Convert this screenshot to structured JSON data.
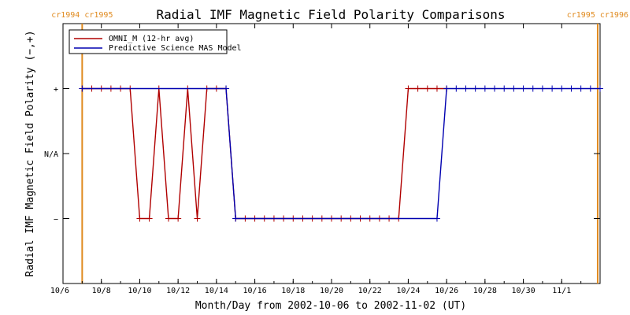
{
  "chart_data": {
    "type": "line",
    "title": "Radial IMF Magnetic Field Polarity Comparisons",
    "xlabel": "Month/Day from 2002-10-06 to 2002-11-02 (UT)",
    "ylabel": "Radial IMF Magnetic Field Polarity (−,+)",
    "xlim": [
      "2002-10-06",
      "2002-11-03"
    ],
    "ylim": [
      -2,
      2
    ],
    "x_ticks": [
      {
        "date": "2002-10-06",
        "label": "10/6"
      },
      {
        "date": "2002-10-08",
        "label": "10/8"
      },
      {
        "date": "2002-10-10",
        "label": "10/10"
      },
      {
        "date": "2002-10-12",
        "label": "10/12"
      },
      {
        "date": "2002-10-14",
        "label": "10/14"
      },
      {
        "date": "2002-10-16",
        "label": "10/16"
      },
      {
        "date": "2002-10-18",
        "label": "10/18"
      },
      {
        "date": "2002-10-20",
        "label": "10/20"
      },
      {
        "date": "2002-10-22",
        "label": "10/22"
      },
      {
        "date": "2002-10-24",
        "label": "10/24"
      },
      {
        "date": "2002-10-26",
        "label": "10/26"
      },
      {
        "date": "2002-10-28",
        "label": "10/28"
      },
      {
        "date": "2002-10-30",
        "label": "10/30"
      },
      {
        "date": "2002-11-01",
        "label": "11/1"
      }
    ],
    "y_ticks": [
      {
        "value": 1,
        "label": "+"
      },
      {
        "value": 0,
        "label": "N/A"
      },
      {
        "value": -1,
        "label": "−"
      }
    ],
    "carrington_markers": [
      {
        "date": "2002-10-07 00:00",
        "label": "cr1994 cr1995",
        "side": "left"
      },
      {
        "date": "2002-11-02 21:00",
        "label": "cr1995 cr1996",
        "side": "right"
      }
    ],
    "marker_color": "#e08a1e",
    "legend_position": "top-left",
    "series": [
      {
        "name": "OMNI_M (12-hr avg)",
        "color": "#b00000",
        "markers": "plus",
        "points": [
          [
            "2002-10-07 00:00",
            1
          ],
          [
            "2002-10-07 12:00",
            1
          ],
          [
            "2002-10-08 00:00",
            1
          ],
          [
            "2002-10-08 12:00",
            1
          ],
          [
            "2002-10-09 00:00",
            1
          ],
          [
            "2002-10-09 12:00",
            1
          ],
          [
            "2002-10-10 00:00",
            -1
          ],
          [
            "2002-10-10 12:00",
            -1
          ],
          [
            "2002-10-11 00:00",
            1
          ],
          [
            "2002-10-11 12:00",
            -1
          ],
          [
            "2002-10-12 00:00",
            -1
          ],
          [
            "2002-10-12 12:00",
            1
          ],
          [
            "2002-10-13 00:00",
            -1
          ],
          [
            "2002-10-13 12:00",
            1
          ],
          [
            "2002-10-14 00:00",
            1
          ],
          [
            "2002-10-14 12:00",
            1
          ],
          [
            "2002-10-15 00:00",
            -1
          ],
          [
            "2002-10-15 12:00",
            -1
          ],
          [
            "2002-10-16 00:00",
            -1
          ],
          [
            "2002-10-16 12:00",
            -1
          ],
          [
            "2002-10-17 00:00",
            -1
          ],
          [
            "2002-10-17 12:00",
            -1
          ],
          [
            "2002-10-18 00:00",
            -1
          ],
          [
            "2002-10-18 12:00",
            -1
          ],
          [
            "2002-10-19 00:00",
            -1
          ],
          [
            "2002-10-19 12:00",
            -1
          ],
          [
            "2002-10-20 00:00",
            -1
          ],
          [
            "2002-10-20 12:00",
            -1
          ],
          [
            "2002-10-21 00:00",
            -1
          ],
          [
            "2002-10-21 12:00",
            -1
          ],
          [
            "2002-10-22 00:00",
            -1
          ],
          [
            "2002-10-22 12:00",
            -1
          ],
          [
            "2002-10-23 00:00",
            -1
          ],
          [
            "2002-10-23 12:00",
            -1
          ],
          [
            "2002-10-24 00:00",
            1
          ],
          [
            "2002-10-24 12:00",
            1
          ],
          [
            "2002-10-25 00:00",
            1
          ],
          [
            "2002-10-25 12:00",
            1
          ],
          [
            "2002-10-26 00:00",
            1
          ]
        ]
      },
      {
        "name": "Predictive Science MAS Model",
        "color": "#0000b0",
        "markers": "plus",
        "points": [
          [
            "2002-10-07 00:00",
            1
          ],
          [
            "2002-10-14 12:00",
            1
          ],
          [
            "2002-10-15 00:00",
            -1
          ],
          [
            "2002-10-25 12:00",
            -1
          ],
          [
            "2002-10-26 00:00",
            1
          ],
          [
            "2002-10-26 12:00",
            1
          ],
          [
            "2002-10-27 00:00",
            1
          ],
          [
            "2002-10-27 12:00",
            1
          ],
          [
            "2002-10-28 00:00",
            1
          ],
          [
            "2002-10-28 12:00",
            1
          ],
          [
            "2002-10-29 00:00",
            1
          ],
          [
            "2002-10-29 12:00",
            1
          ],
          [
            "2002-10-30 00:00",
            1
          ],
          [
            "2002-10-30 12:00",
            1
          ],
          [
            "2002-10-31 00:00",
            1
          ],
          [
            "2002-10-31 12:00",
            1
          ],
          [
            "2002-11-01 00:00",
            1
          ],
          [
            "2002-11-01 12:00",
            1
          ],
          [
            "2002-11-02 00:00",
            1
          ],
          [
            "2002-11-02 12:00",
            1
          ],
          [
            "2002-11-03 00:00",
            1
          ]
        ]
      }
    ]
  }
}
